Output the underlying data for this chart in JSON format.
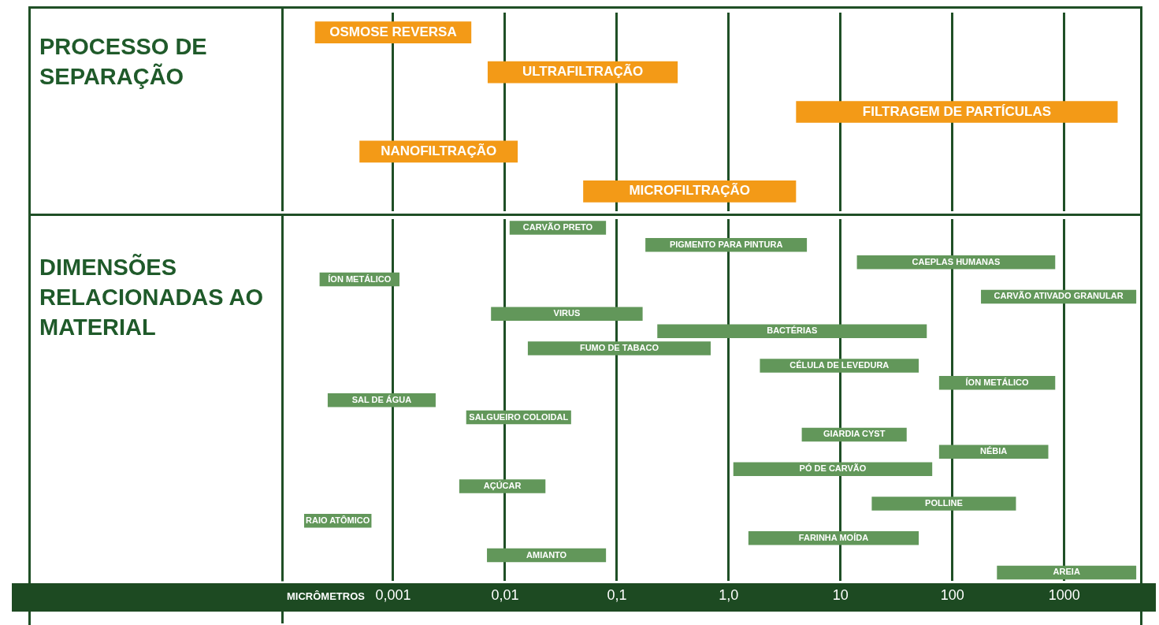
{
  "chart_data": [
    {
      "type": "bar",
      "orientation": "horizontal",
      "ylabel": "PROCESSO DE SEPARAÇÃO",
      "categories": [
        "OSMOSE REVERSA",
        "ULTRAFILTRAÇÃO",
        "FILTRAGEM DE PARTÍCULAS",
        "NANOFILTRAÇÃO",
        "MICROFILTRAÇÃO"
      ],
      "base": [
        0.0002,
        0.007,
        4,
        0.0005,
        0.05
      ],
      "values": [
        0.0048,
        0.343,
        2996,
        0.0125,
        3.95
      ],
      "color": "#f39a17",
      "log": "x",
      "xlim": [
        0.0001,
        5000
      ],
      "xticks": [
        0.001,
        0.01,
        0.1,
        1,
        10,
        100,
        1000
      ],
      "tick_labels": false,
      "grid": "x",
      "legend": false
    },
    {
      "type": "bar",
      "orientation": "horizontal",
      "ylabel": "DIMENSÕES RELACIONADAS AO MATERIAL",
      "xlabel": "MICRÔMETROS",
      "categories": [
        "CARVÃO PRETO",
        "PIGMENTO PARA PINTURA",
        "CAEPLAS HUMANAS",
        "ÍON METÁLICO",
        "CARVÃO ATIVADO GRANULAR",
        "VIRUS",
        "BACTÉRIAS",
        "FUMO DE TABACO",
        "CÉLULA DE LEVEDURA",
        "ÍON METÁLICO",
        "SAL DE ÁGUA",
        "SALGUEIRO COLOIDAL",
        "GIARDIA CYST",
        "NÉBIA",
        "PÓ DE CARVÃO",
        "AÇÚCAR",
        "POLLINE",
        "RAIO ATÔMICO",
        "FARINHA MOÍDA",
        "AMIANTO",
        "AREIA"
      ],
      "base": [
        0.011,
        0.18,
        14,
        0.00022,
        180,
        0.0075,
        0.23,
        0.016,
        1.9,
        76,
        0.00026,
        0.0045,
        4.5,
        76,
        1.1,
        0.0039,
        19,
        0.00016,
        1.5,
        0.0069,
        250
      ],
      "values": [
        0.069,
        4.82,
        816,
        0.00092,
        4220,
        0.1625,
        58.77,
        0.674,
        48.1,
        754,
        0.00214,
        0.0345,
        34.5,
        644,
        64.9,
        0.0191,
        351,
        0.00048,
        48.5,
        0.0731,
        4150
      ],
      "color": "#62975a",
      "log": "x",
      "xlim": [
        0.0001,
        5000
      ],
      "xticks": [
        {
          "value": 0.001,
          "label": "0,001"
        },
        {
          "value": 0.01,
          "label": "0,01"
        },
        {
          "value": 0.1,
          "label": "0,1"
        },
        {
          "value": 1,
          "label": "1,0"
        },
        10,
        100,
        1000
      ],
      "tick_labels": "x",
      "grid": "x",
      "legend": false
    }
  ]
}
